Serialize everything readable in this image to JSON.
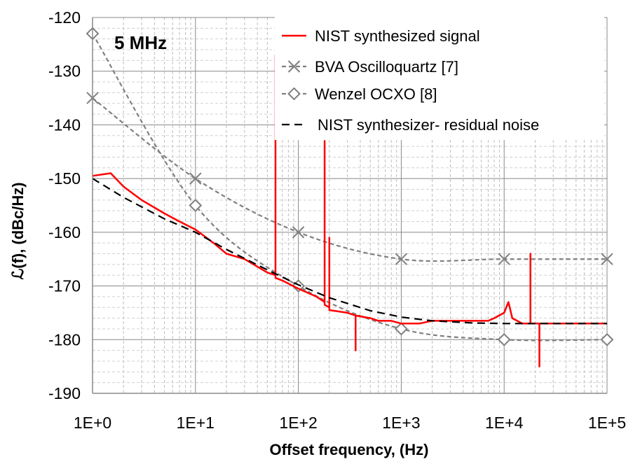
{
  "chart_data": {
    "type": "line",
    "xscale": "log",
    "xlim": [
      1,
      100000
    ],
    "ylim": [
      -190,
      -120
    ],
    "xlabel": "Offset frequency, (Hz)",
    "ylabel": "ℒ(f), (dBc/Hz)",
    "grid": true,
    "legend_position": "top-right",
    "annotation": "5 MHz",
    "xticks": [
      1,
      10,
      100,
      1000,
      10000,
      100000
    ],
    "xtick_labels": [
      "1E+0",
      "1E+1",
      "1E+2",
      "1E+3",
      "1E+4",
      "1E+5"
    ],
    "yticks": [
      -120,
      -130,
      -140,
      -150,
      -160,
      -170,
      -180,
      -190
    ],
    "ytick_labels": [
      "-120",
      "-130",
      "-140",
      "-150",
      "-160",
      "-170",
      "-180",
      "-190"
    ],
    "series": [
      {
        "name": "NIST synthesized signal",
        "style": "solid",
        "marker": "none",
        "color": "#ff0000",
        "x": [
          1,
          1.5,
          2,
          3,
          5,
          7,
          10,
          15,
          20,
          30,
          50,
          60,
          60,
          60,
          70,
          100,
          150,
          180,
          180,
          180,
          200,
          200,
          200,
          300,
          360,
          360,
          360,
          500,
          600,
          700,
          800,
          1000,
          1500,
          2000,
          3000,
          5000,
          7000,
          8000,
          10000,
          11000,
          12000,
          15000,
          18000,
          18000,
          18000,
          20000,
          22000,
          22000,
          22000,
          25000,
          30000,
          50000,
          70000,
          100000
        ],
        "y": [
          -149.5,
          -149,
          -151.5,
          -154,
          -156.5,
          -158,
          -159.5,
          -162,
          -164,
          -165,
          -167.5,
          -168,
          -127,
          -168.5,
          -169,
          -170.5,
          -172,
          -173,
          -143,
          -173.5,
          -174,
          -161,
          -174.5,
          -175,
          -175.5,
          -182,
          -175.5,
          -176,
          -176.5,
          -176.5,
          -176.5,
          -177,
          -177,
          -176.5,
          -176.5,
          -176.5,
          -176.5,
          -176,
          -175,
          -173,
          -176,
          -177,
          -177,
          -164,
          -177,
          -177,
          -177,
          -185,
          -177,
          -177,
          -177,
          -177,
          -177,
          -177
        ]
      },
      {
        "name": "BVA Oscilloquartz [7]",
        "style": "dashed",
        "marker": "x",
        "color": "#808080",
        "x": [
          1,
          10,
          100,
          1000,
          10000,
          100000
        ],
        "y": [
          -135,
          -150,
          -160,
          -165,
          -165,
          -165
        ]
      },
      {
        "name": "Wenzel OCXO [8]",
        "style": "dashed",
        "marker": "diamond",
        "color": "#808080",
        "x": [
          1,
          10,
          100,
          1000,
          10000,
          100000
        ],
        "y": [
          -123,
          -155,
          -170,
          -178,
          -180,
          -180
        ]
      },
      {
        "name": "NIST synthesizer- residual noise",
        "style": "dashed",
        "marker": "none",
        "color": "#000000",
        "x": [
          1,
          2,
          5,
          10,
          20,
          50,
          100,
          200,
          500,
          1000,
          2000,
          5000,
          10000,
          100000
        ],
        "y": [
          -150,
          -153.5,
          -157.5,
          -160,
          -163.2,
          -167,
          -169.8,
          -172.2,
          -174.6,
          -175.8,
          -176.5,
          -176.9,
          -177,
          -177
        ]
      }
    ]
  }
}
